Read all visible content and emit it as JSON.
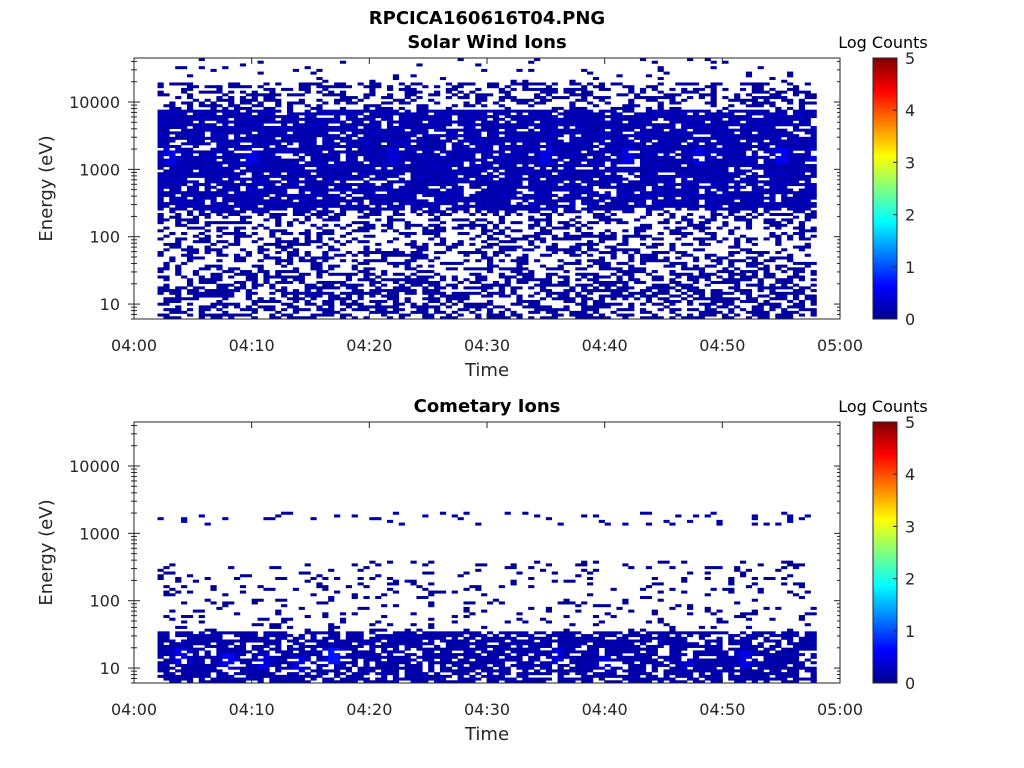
{
  "figure": {
    "title": "RPCICA160616T04.PNG"
  },
  "colormap": [
    "#00008f",
    "#0000ff",
    "#0080ff",
    "#00ffff",
    "#80ff80",
    "#ffff00",
    "#ff8000",
    "#ff0000",
    "#800000"
  ],
  "chart_data": [
    {
      "type": "heatmap",
      "title": "Solar Wind Ions",
      "xlabel": "Time",
      "ylabel": "Energy (eV)",
      "xticks": [
        "04:00",
        "04:10",
        "04:20",
        "04:30",
        "04:40",
        "04:50",
        "05:00"
      ],
      "xlim": [
        "04:00",
        "05:00"
      ],
      "yscale": "log",
      "ylim": [
        6,
        45000
      ],
      "yticks": [
        10,
        100,
        1000,
        10000
      ],
      "ytick_labels": [
        "10",
        "100",
        "1000",
        "10000"
      ],
      "time_coverage": [
        "04:02",
        "04:58"
      ],
      "colorbar": {
        "label": "Log Counts",
        "range": [
          0,
          5
        ],
        "ticks": [
          "0",
          "1",
          "2",
          "3",
          "4",
          "5"
        ]
      },
      "bands": [
        {
          "energy_range": [
            6,
            30
          ],
          "coverage": 0.55,
          "level": 0.1
        },
        {
          "energy_range": [
            30,
            250
          ],
          "coverage": 0.4,
          "level": 0.1
        },
        {
          "energy_range": [
            250,
            8000
          ],
          "coverage": 0.85,
          "level": 0.2
        },
        {
          "energy_range": [
            8000,
            20000
          ],
          "coverage": 0.4,
          "level": 0.1
        },
        {
          "energy_range": [
            20000,
            45000
          ],
          "coverage": 0.04,
          "level": 0.05
        }
      ],
      "peaks": [
        {
          "time": "04:03",
          "energy": 1600,
          "level": 0.6
        },
        {
          "time": "04:10",
          "energy": 1600,
          "level": 0.6
        },
        {
          "time": "04:22",
          "energy": 1600,
          "level": 0.5
        },
        {
          "time": "04:35",
          "energy": 1600,
          "level": 0.6
        },
        {
          "time": "04:42",
          "energy": 1600,
          "level": 0.6
        },
        {
          "time": "04:48",
          "energy": 1600,
          "level": 0.6
        },
        {
          "time": "04:55",
          "energy": 1600,
          "level": 0.7
        },
        {
          "time": "04:58",
          "energy": 1600,
          "level": 0.6
        }
      ]
    },
    {
      "type": "heatmap",
      "title": "Cometary Ions",
      "xlabel": "Time",
      "ylabel": "Energy (eV)",
      "xticks": [
        "04:00",
        "04:10",
        "04:20",
        "04:30",
        "04:40",
        "04:50",
        "05:00"
      ],
      "xlim": [
        "04:00",
        "05:00"
      ],
      "yscale": "log",
      "ylim": [
        6,
        45000
      ],
      "yticks": [
        10,
        100,
        1000,
        10000
      ],
      "ytick_labels": [
        "10",
        "100",
        "1000",
        "10000"
      ],
      "time_coverage": [
        "04:02",
        "04:58"
      ],
      "colorbar": {
        "label": "Log Counts",
        "range": [
          0,
          5
        ],
        "ticks": [
          "0",
          "1",
          "2",
          "3",
          "4",
          "5"
        ]
      },
      "bands": [
        {
          "energy_range": [
            6,
            35
          ],
          "coverage": 0.75,
          "level": 0.15
        },
        {
          "energy_range": [
            35,
            400
          ],
          "coverage": 0.12,
          "level": 0.05
        },
        {
          "energy_range": [
            1300,
            2100
          ],
          "coverage": 0.12,
          "level": 0.15
        }
      ],
      "peaks": [
        {
          "time": "04:04",
          "energy": 15,
          "level": 0.7
        },
        {
          "time": "04:08",
          "energy": 13,
          "level": 0.8
        },
        {
          "time": "04:11",
          "energy": 13,
          "level": 0.6
        },
        {
          "time": "04:14",
          "energy": 12,
          "level": 0.6
        },
        {
          "time": "04:17",
          "energy": 15,
          "level": 0.9
        },
        {
          "time": "04:36",
          "energy": 15,
          "level": 0.5
        },
        {
          "time": "04:40",
          "energy": 12,
          "level": 0.5
        },
        {
          "time": "04:47",
          "energy": 14,
          "level": 0.5
        },
        {
          "time": "04:52",
          "energy": 14,
          "level": 0.6
        }
      ]
    }
  ]
}
